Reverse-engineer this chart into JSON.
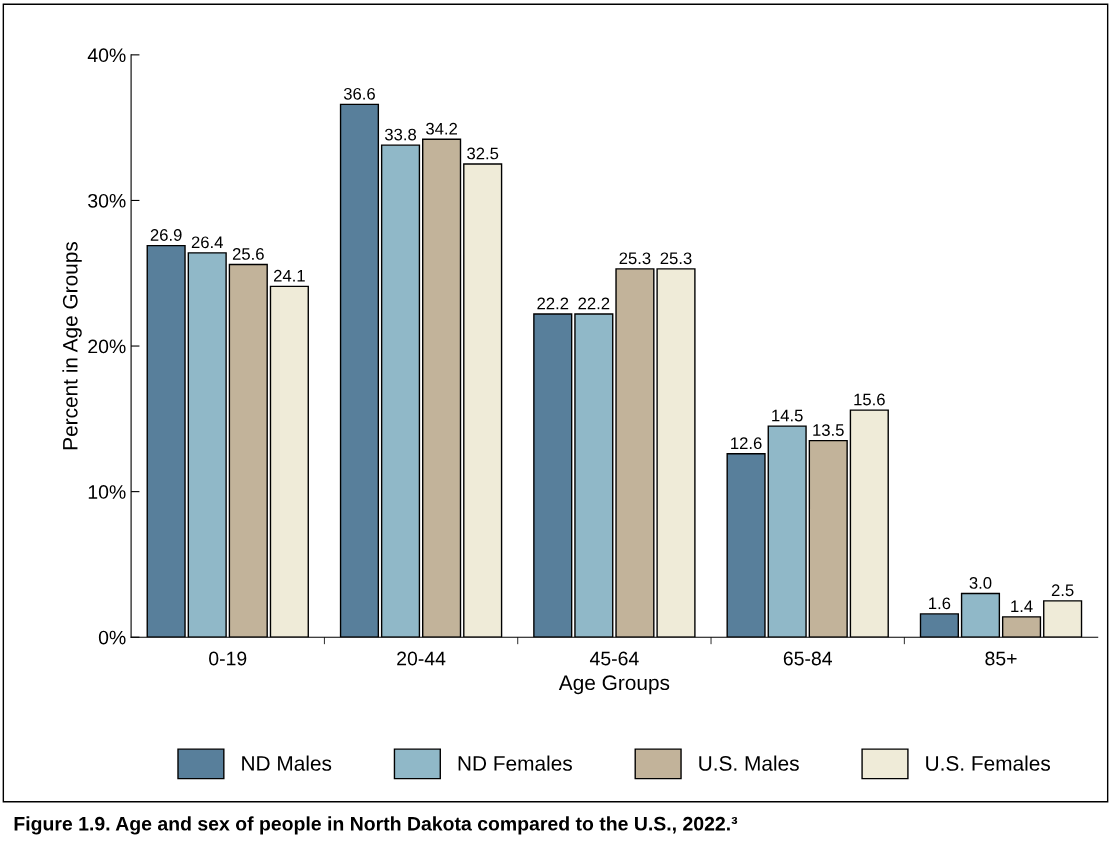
{
  "chart_data": {
    "type": "bar",
    "xlabel": "Age Groups",
    "ylabel": "Percent in Age Groups",
    "categories": [
      "0-19",
      "20-44",
      "45-64",
      "65-84",
      "85+"
    ],
    "series": [
      {
        "name": "ND Males",
        "color": "#587f9b",
        "values": [
          26.9,
          36.6,
          22.2,
          12.6,
          1.6
        ],
        "value_labels": [
          "26.9",
          "36.6",
          "22.2",
          "12.6",
          "1.6"
        ]
      },
      {
        "name": "ND Females",
        "color": "#90b8c8",
        "values": [
          26.4,
          33.8,
          22.2,
          14.5,
          3.0
        ],
        "value_labels": [
          "26.4",
          "33.8",
          "22.2",
          "14.5",
          "3.0"
        ]
      },
      {
        "name": "U.S. Males",
        "color": "#c2b39a",
        "values": [
          25.6,
          34.2,
          25.3,
          13.5,
          1.4
        ],
        "value_labels": [
          "25.6",
          "34.2",
          "25.3",
          "13.5",
          "1.4"
        ]
      },
      {
        "name": "U.S. Females",
        "color": "#efebd8",
        "values": [
          24.1,
          32.5,
          25.3,
          15.6,
          2.5
        ],
        "value_labels": [
          "24.1",
          "32.5",
          "25.3",
          "15.6",
          "2.5"
        ]
      }
    ],
    "ylim": [
      0,
      40
    ],
    "yticks": [
      {
        "value": 0,
        "label": "0%"
      },
      {
        "value": 10,
        "label": "10%"
      },
      {
        "value": 20,
        "label": "20%"
      },
      {
        "value": 30,
        "label": "30%"
      },
      {
        "value": 40,
        "label": "40%"
      }
    ],
    "grid": false,
    "legend": "bottom",
    "annotations": [
      "Figure 1.9. Age and sex of people in North Dakota compared to the U.S., 2022.³"
    ]
  }
}
